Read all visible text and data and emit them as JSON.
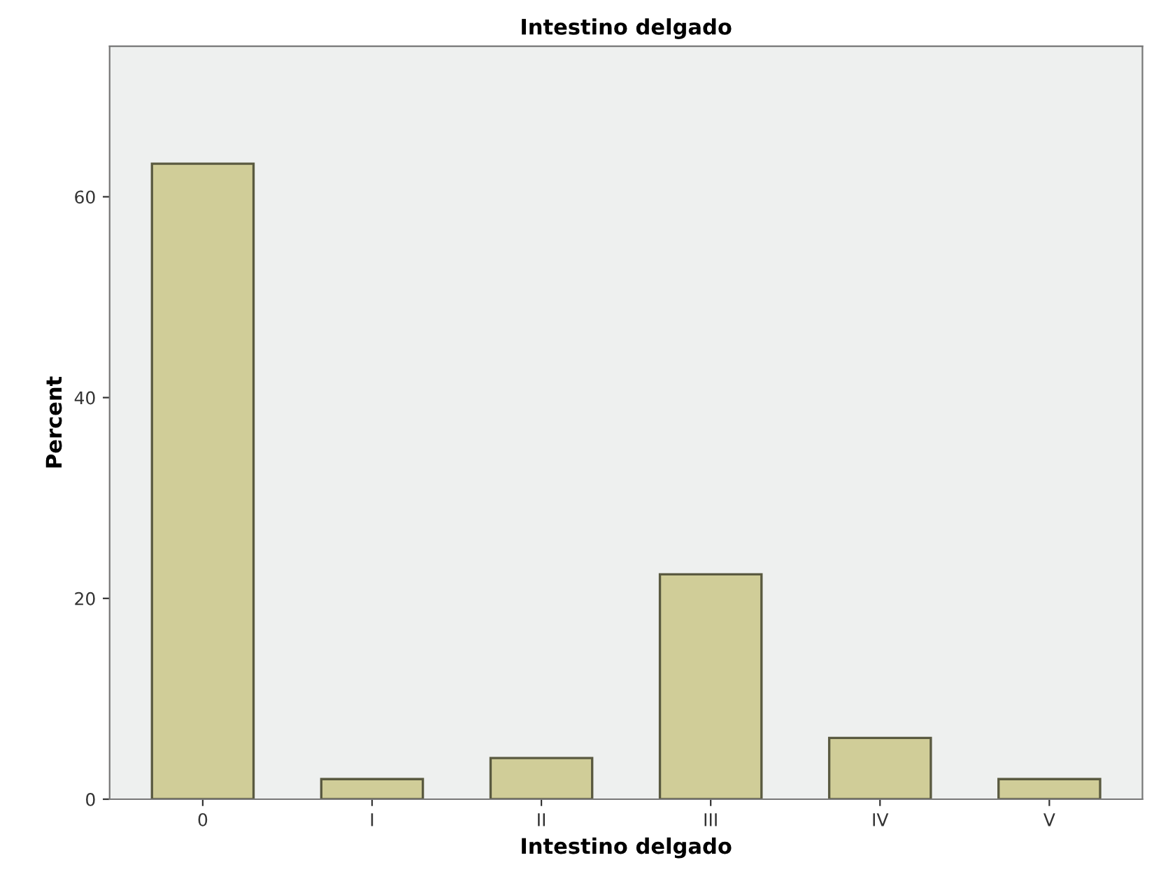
{
  "chart_data": {
    "type": "bar",
    "title": "Intestino delgado",
    "xlabel": "Intestino delgado",
    "ylabel": "Percent",
    "categories": [
      "0",
      "I",
      "II",
      "III",
      "IV",
      "V"
    ],
    "values": [
      63.3,
      2.0,
      4.1,
      22.4,
      6.1,
      2.0
    ],
    "color": "#d0cd98",
    "ylim": [
      0,
      75
    ],
    "yticks": [
      0,
      20,
      40,
      60
    ],
    "grid": false,
    "legend": false
  }
}
